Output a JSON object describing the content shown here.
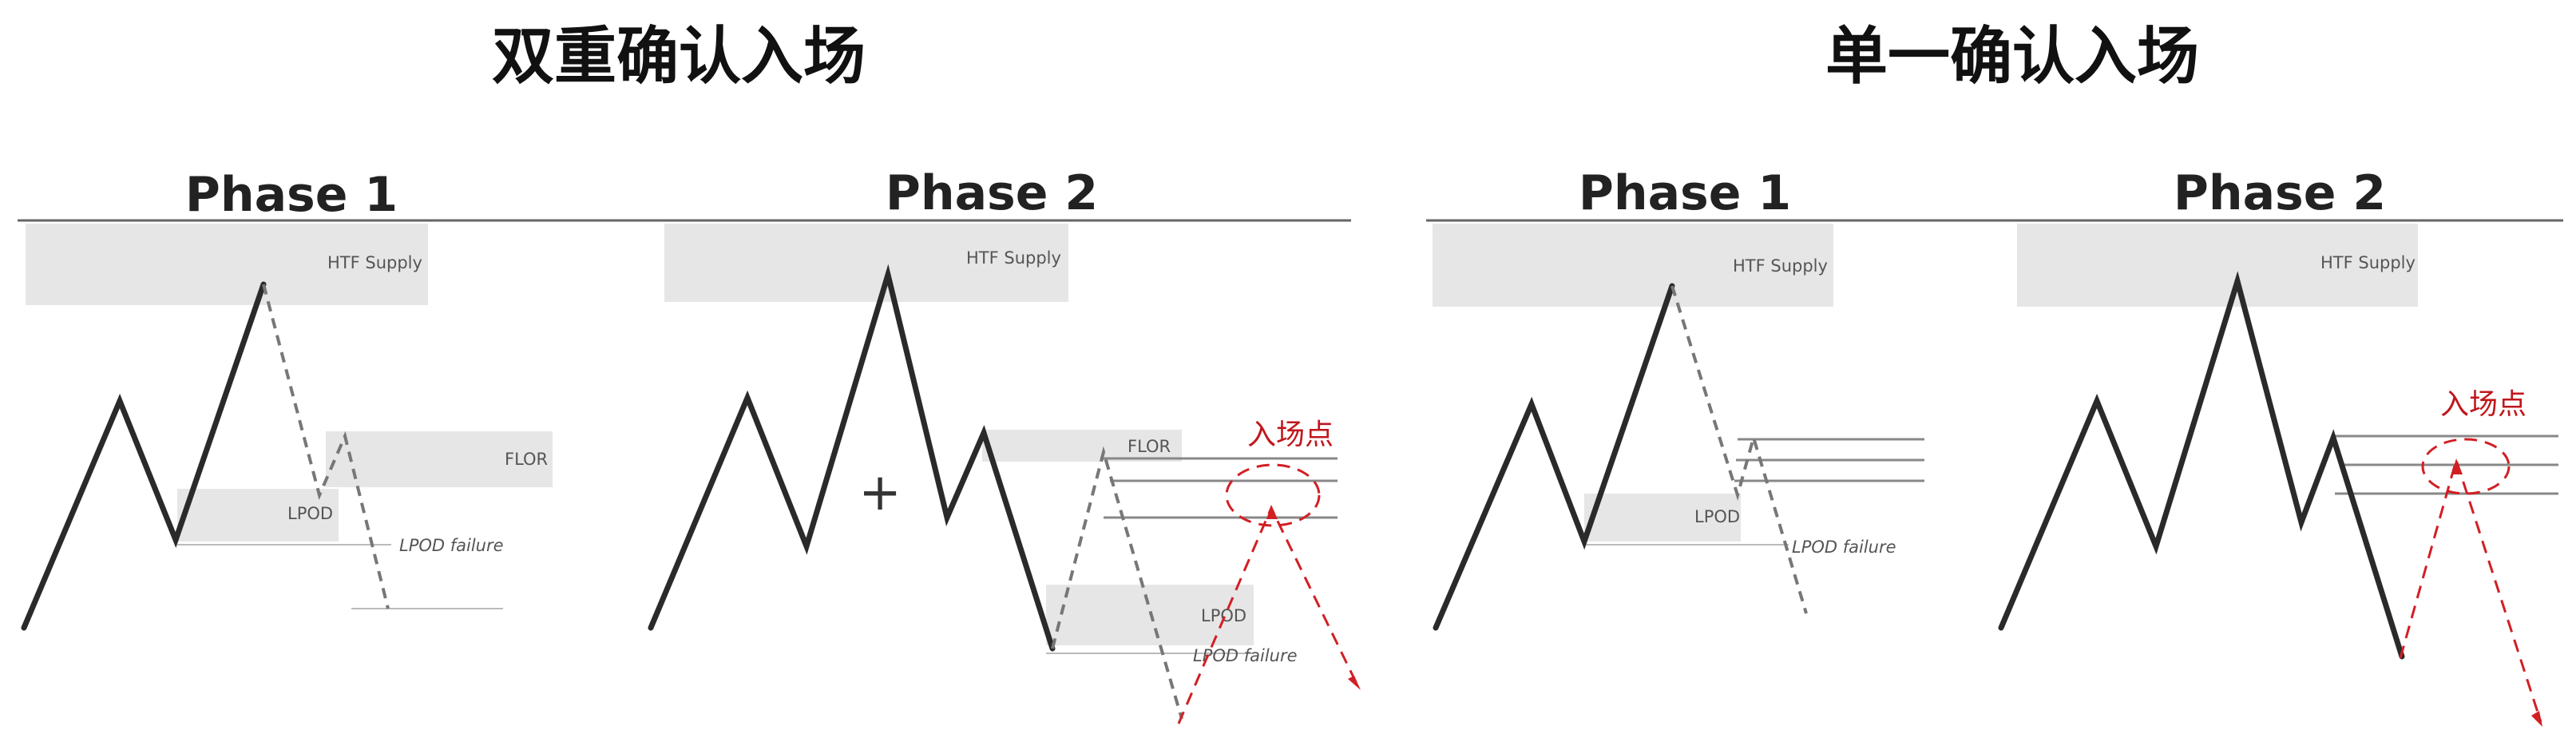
{
  "left_panel": {
    "title": "双重确认入场",
    "phase1": {
      "label": "Phase 1",
      "supply": "HTF Supply",
      "flor": "FLOR",
      "lpod": "LPOD",
      "failure": "LPOD failure"
    },
    "phase2": {
      "label": "Phase 2",
      "supply": "HTF Supply",
      "flor": "FLOR",
      "plus": "+",
      "entry": "入场点",
      "lpod": "LPOD",
      "failure": "LPOD failure"
    }
  },
  "right_panel": {
    "title": "单一确认入场",
    "phase1": {
      "label": "Phase 1",
      "supply": "HTF Supply",
      "lpod": "LPOD",
      "failure": "LPOD failure"
    },
    "phase2": {
      "label": "Phase 2",
      "supply": "HTF Supply",
      "entry": "入场点"
    }
  },
  "colors": {
    "entry_red": "#c0171c",
    "zone_grey": "#e6e6e6",
    "price_line": "#2a2a2a"
  }
}
